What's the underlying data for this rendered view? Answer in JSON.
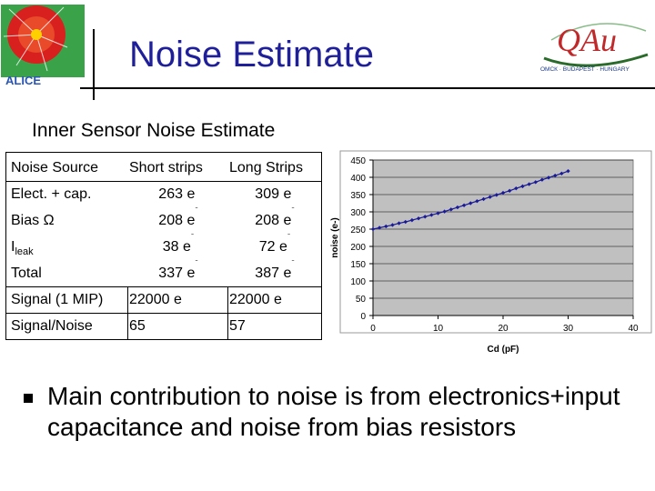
{
  "header": {
    "title": "Noise Estimate",
    "alice_logo_text": "ALICE",
    "institute_logo": {
      "letters": "QAu",
      "tagline": "ОМСК · BUDAPEST · HUNGARY"
    }
  },
  "subtitle": "Inner Sensor Noise Estimate",
  "table": {
    "headers": [
      "Noise Source",
      "Short strips",
      "Long Strips"
    ],
    "rows": [
      {
        "label": "Elect. + cap.",
        "short": "263 e",
        "long": "309 e",
        "sup": "-"
      },
      {
        "label": "Bias Ω",
        "short": "208 e",
        "long": "208 e",
        "sup": "-"
      },
      {
        "label": "I",
        "label_sub": "leak",
        "short": "38 e",
        "long": "72 e",
        "sup": "-"
      },
      {
        "label": "Total",
        "short": "337 e",
        "long": "387 e",
        "sup": "-"
      },
      {
        "label": "Signal (1 MIP)",
        "short": "22000 e",
        "long": "22000 e",
        "sup": "-"
      },
      {
        "label": "Signal/Noise",
        "short": "65",
        "long": "57",
        "sup": ""
      }
    ]
  },
  "chart_data": {
    "type": "line",
    "xlabel": "Cd (pF)",
    "ylabel": "noise (e-)",
    "xlim": [
      0,
      40
    ],
    "ylim": [
      0,
      450
    ],
    "xticks": [
      0,
      10,
      20,
      30,
      40
    ],
    "yticks": [
      0,
      50,
      100,
      150,
      200,
      250,
      300,
      350,
      400,
      450
    ],
    "grid": true,
    "plot_background": "#c0c0c0",
    "series": [
      {
        "color": "#1a1a99",
        "marker": "diamond",
        "x": [
          0,
          1,
          2,
          3,
          4,
          5,
          6,
          7,
          8,
          9,
          10,
          11,
          12,
          13,
          14,
          15,
          16,
          17,
          18,
          19,
          20,
          21,
          22,
          23,
          24,
          25,
          26,
          27,
          28,
          29,
          30
        ],
        "y": [
          250,
          254,
          258,
          262,
          267,
          271,
          276,
          281,
          286,
          291,
          296,
          301,
          307,
          313,
          319,
          325,
          331,
          337,
          343,
          349,
          355,
          361,
          368,
          374,
          380,
          386,
          393,
          399,
          405,
          411,
          418
        ]
      }
    ]
  },
  "bullet": {
    "text": "Main contribution to noise is from electronics+input capacitance and noise from bias resistors"
  }
}
